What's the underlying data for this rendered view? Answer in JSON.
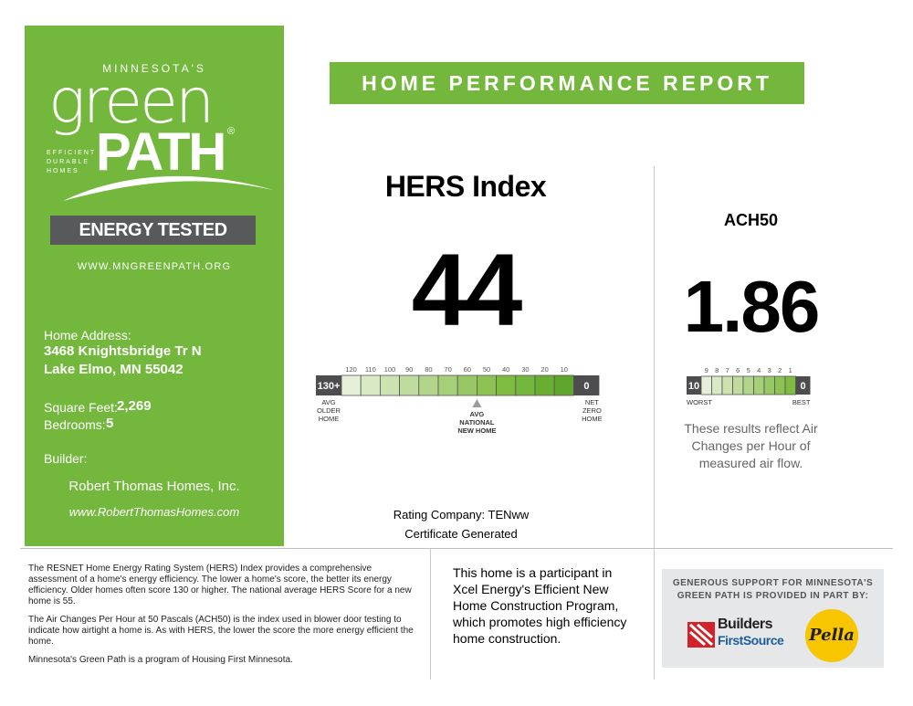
{
  "brand": {
    "state": "MINNESOTA'S",
    "green": "green",
    "path": "PATH",
    "registered": "®",
    "tagline": [
      "EFFICIENT",
      "DURABLE",
      "HOMES"
    ],
    "badge": "ENERGY TESTED",
    "website": "WWW.MNGREENPATH.ORG"
  },
  "home": {
    "address_label": "Home Address:",
    "address_line1": "3468 Knightsbridge Tr N",
    "address_line2": "Lake Elmo, MN 55042",
    "sqft_label": "Square Feet:",
    "sqft": "2,269",
    "bedrooms_label": "Bedrooms:",
    "bedrooms": "5",
    "builder_label": "Builder:",
    "builder_name": "Robert Thomas Homes, Inc.",
    "builder_site": "www.RobertThomasHomes.com"
  },
  "header": {
    "title": "HOME PERFORMANCE REPORT"
  },
  "hers": {
    "title": "HERS Index",
    "score": "44",
    "score_value": 44,
    "scale_ticks": [
      "120",
      "110",
      "100",
      "90",
      "80",
      "70",
      "60",
      "50",
      "40",
      "30",
      "20",
      "10"
    ],
    "left_end": "130+",
    "right_end": "0",
    "left_caption": [
      "AVG",
      "OLDER",
      "HOME"
    ],
    "right_caption": [
      "NET",
      "ZERO",
      "HOME"
    ],
    "avg_caption": [
      "AVG",
      "NATIONAL",
      "NEW HOME"
    ],
    "avg_value": 55,
    "rating_company": "Rating Company: TENww",
    "certificate": "Certificate Generated"
  },
  "ach": {
    "title": "ACH50",
    "value": "1.86",
    "value_number": 1.86,
    "ticks": [
      "9",
      "8",
      "7",
      "6",
      "5",
      "4",
      "3",
      "2",
      "1"
    ],
    "left_end": "10",
    "right_end": "0",
    "worst_label": "WORST",
    "best_label": "BEST",
    "note": "These results reflect Air Changes per Hour of measured air flow."
  },
  "info": {
    "p1": "The RESNET Home Energy Rating System (HERS) Index provides a comprehensive assessment of a home's energy efficiency. The lower a home's score, the better its energy efficiency. Older homes often score 130 or higher. The national average HERS Score for a new home is 55.",
    "p2": "The Air Changes Per Hour at 50 Pascals (ACH50) is the index used in blower door testing to indicate how airtight a home is. As with HERS, the lower the score the more energy efficient the home.",
    "p3": "Minnesota's Green Path is a program of Housing First Minnesota."
  },
  "xcel": {
    "text": "This home is a participant in Xcel Energy's Efficient New Home Construction Program, which promotes high efficiency home construction."
  },
  "sponsor": {
    "text": "GENEROUS SUPPORT FOR MINNESOTA'S GREEN PATH IS PROVIDED IN PART BY:",
    "bfs_line1": "Builders",
    "bfs_line2": "FirstSource",
    "pella": "Pella"
  },
  "colors": {
    "brand_green": "#73b83c",
    "badge_gray": "#58595b",
    "scale_dark": "#4d4d4f",
    "sponsor_bg": "#e6e7e8"
  }
}
